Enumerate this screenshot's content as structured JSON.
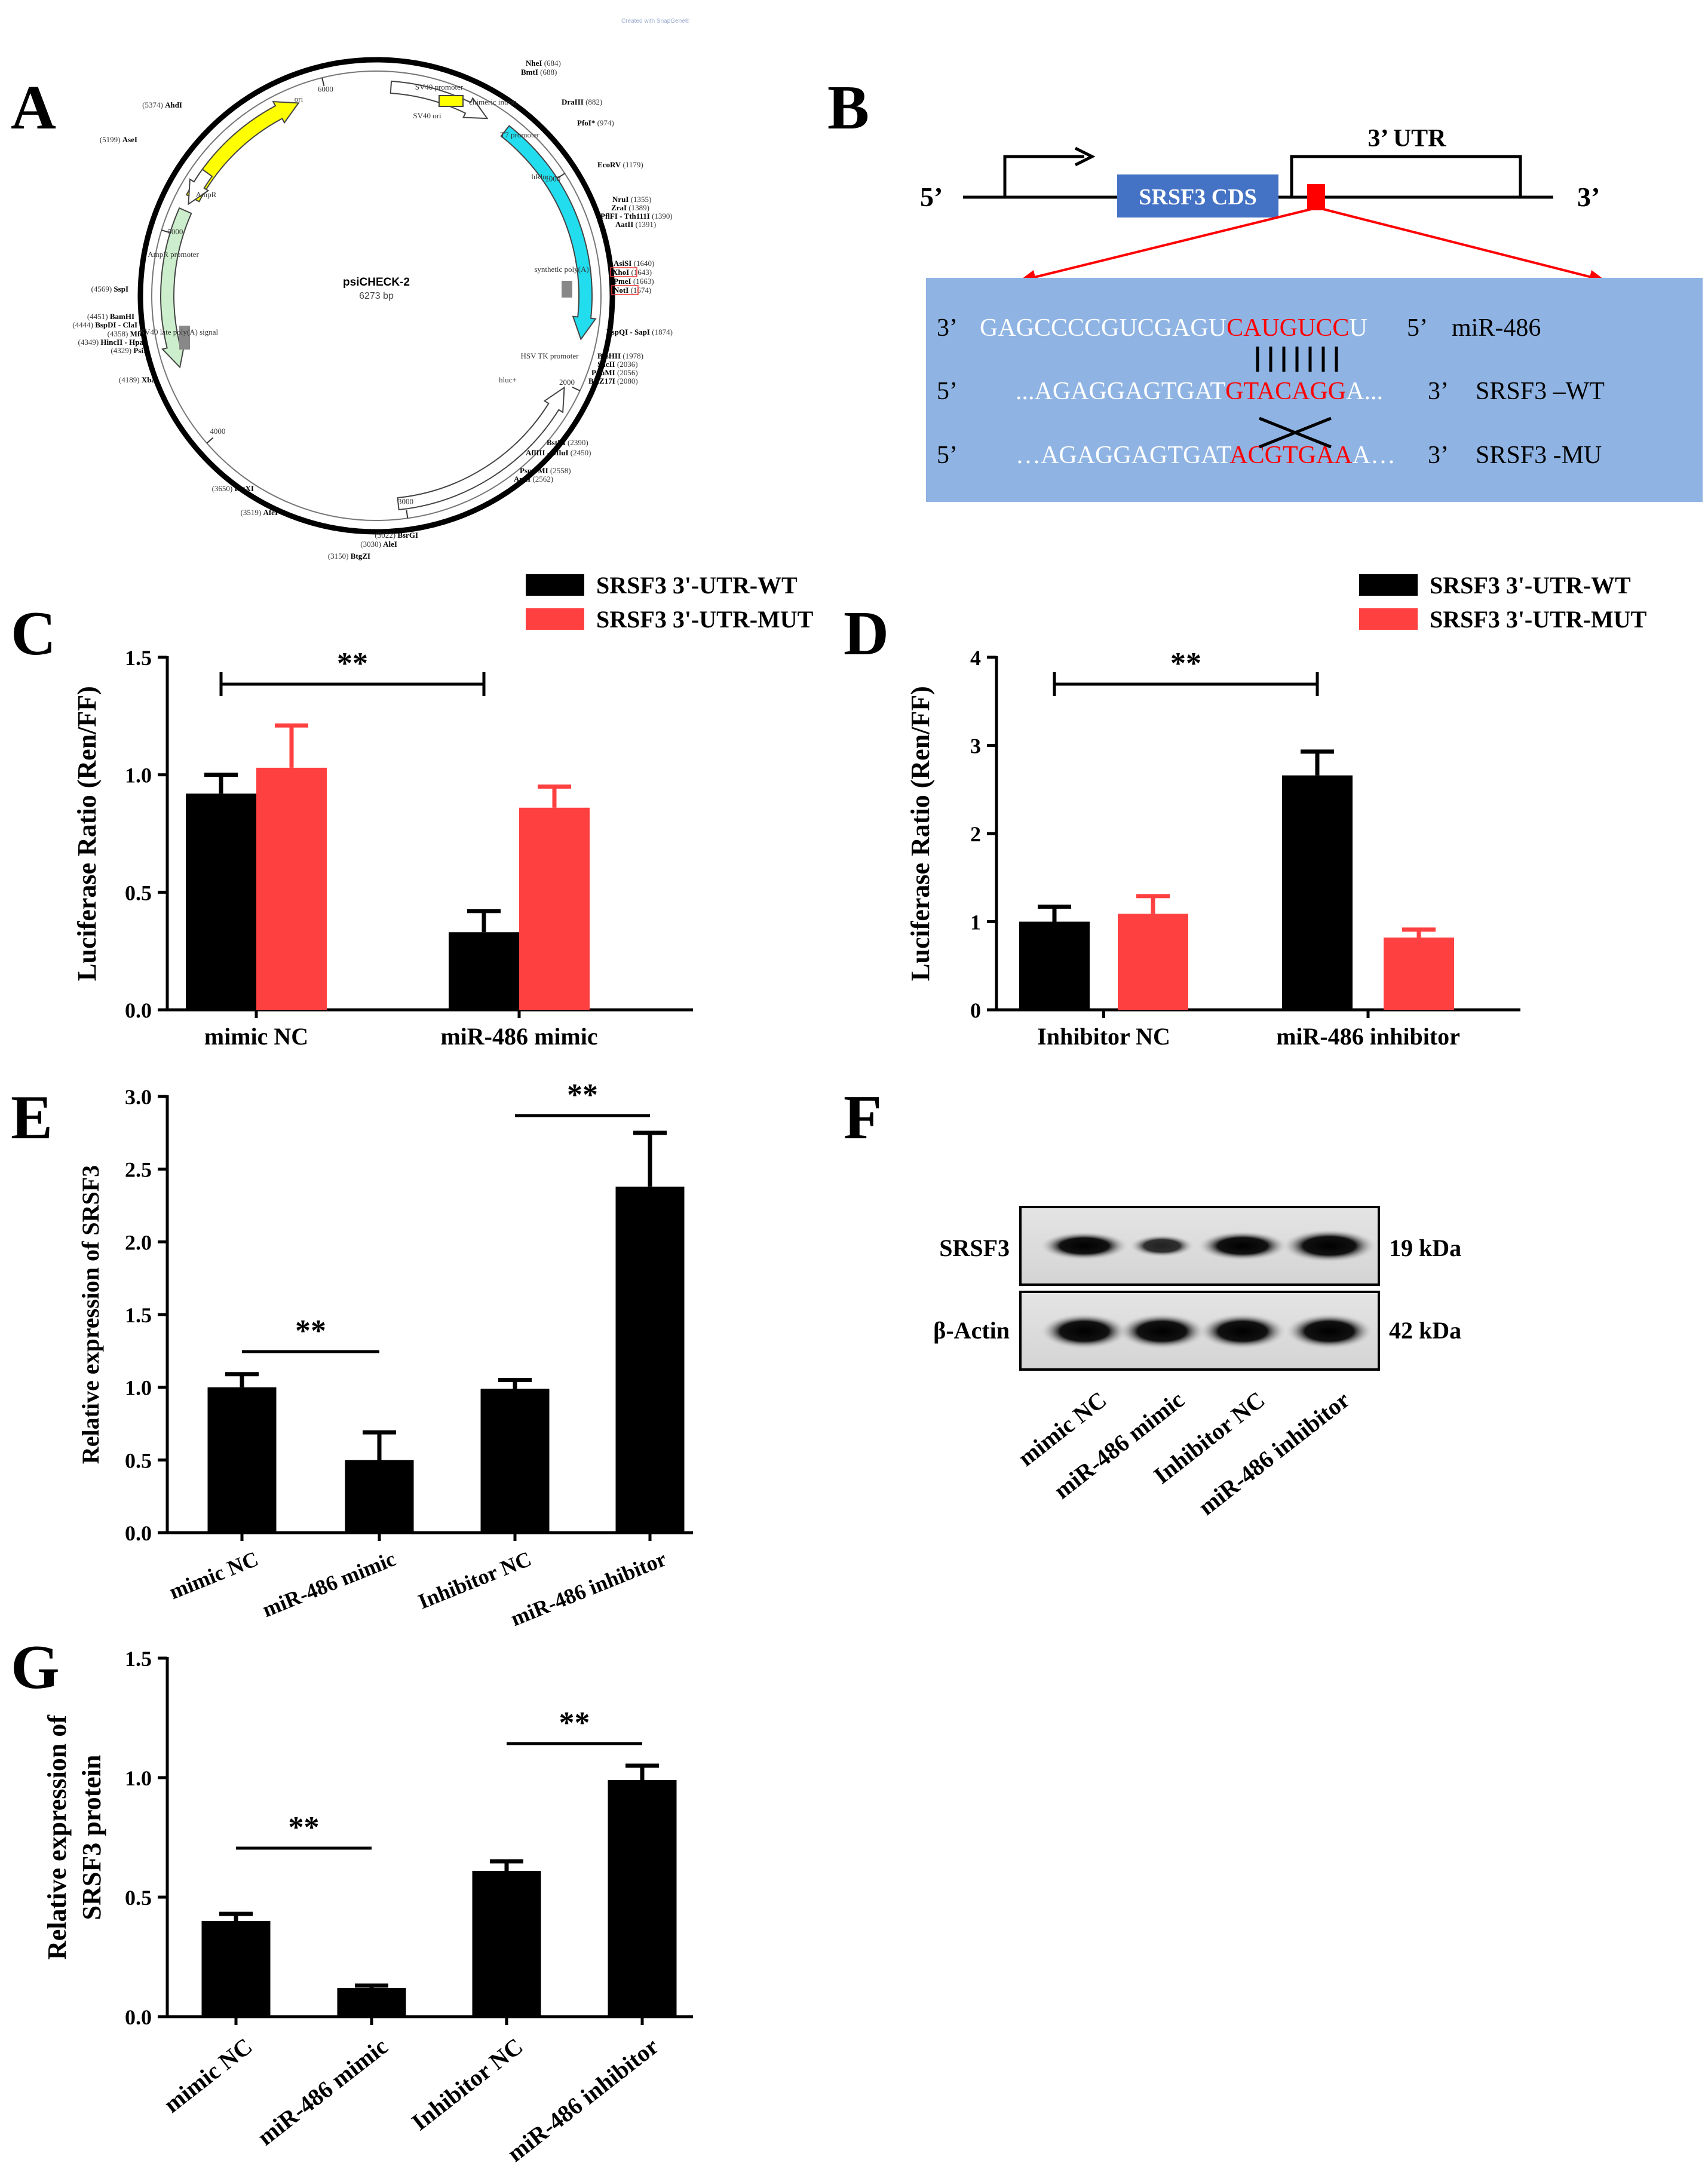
{
  "colors": {
    "wt": "#000000",
    "mut": "#FF4040",
    "blueBox": "#8FB4E3",
    "cds": "#4472C4",
    "red": "#FF0000",
    "cyan": "#22DDEE",
    "yellow": "#FFFF00",
    "lightgreen": "#CCEECC"
  },
  "panel_labels": [
    "A",
    "B",
    "C",
    "D",
    "E",
    "F",
    "G"
  ],
  "panelA": {
    "title": "psiCHECK-2",
    "size": "6273 bp",
    "features": [
      "ori",
      "SV40 promoter",
      "chimeric intron",
      "T7 promoter",
      "SV40 ori",
      "hRluc",
      "synthetic poly(A)",
      "HSV TK promoter",
      "hluc+",
      "SV40 late poly(A) signal",
      "AmpR promoter",
      "AmpR"
    ],
    "ticks": [
      "6000",
      "1000",
      "2000",
      "3000",
      "4000",
      "5000"
    ],
    "sites": [
      {
        "name": "NheI",
        "pos": "(684)"
      },
      {
        "name": "BmtI",
        "pos": "(688)"
      },
      {
        "name": "DraIII",
        "pos": "(882)"
      },
      {
        "name": "PfoI*",
        "pos": "(974)"
      },
      {
        "name": "EcoRV",
        "pos": "(1179)"
      },
      {
        "name": "NruI",
        "pos": "(1355)"
      },
      {
        "name": "ZraI",
        "pos": "(1389)"
      },
      {
        "name": "PflFI - Tth111I",
        "pos": "(1390)"
      },
      {
        "name": "AatII",
        "pos": "(1391)"
      },
      {
        "name": "AsiSI",
        "pos": "(1640)"
      },
      {
        "name": "XhoI",
        "pos": "(1643)"
      },
      {
        "name": "PmeI",
        "pos": "(1663)"
      },
      {
        "name": "NotI",
        "pos": "(1674)"
      },
      {
        "name": "BspQI - SapI",
        "pos": "(1874)"
      },
      {
        "name": "BssHII",
        "pos": "(1978)"
      },
      {
        "name": "SacII",
        "pos": "(2036)"
      },
      {
        "name": "PpuMI",
        "pos": "(2056)"
      },
      {
        "name": "BstZ17I",
        "pos": "(2080)"
      },
      {
        "name": "BstBI",
        "pos": "(2390)"
      },
      {
        "name": "AflIII - MluI",
        "pos": "(2450)"
      },
      {
        "name": "PspOMI",
        "pos": "(2558)"
      },
      {
        "name": "ApaI",
        "pos": "(2562)"
      },
      {
        "name": "BsrGI",
        "pos": "(3022)"
      },
      {
        "name": "AleI",
        "pos": "(3030)"
      },
      {
        "name": "BtgZI",
        "pos": "(3150)"
      },
      {
        "name": "AfeI",
        "pos": "(3519)"
      },
      {
        "name": "BstXI",
        "pos": "(3650)"
      },
      {
        "name": "XbaI",
        "pos": "(4189)"
      },
      {
        "name": "PsiI",
        "pos": "(4329)"
      },
      {
        "name": "HincII - HpaI",
        "pos": "(4349)"
      },
      {
        "name": "MfeI",
        "pos": "(4358)"
      },
      {
        "name": "BspDI - ClaI",
        "pos": "(4444)"
      },
      {
        "name": "BamHI",
        "pos": "(4451)"
      },
      {
        "name": "SspI",
        "pos": "(4569)"
      },
      {
        "name": "AseI",
        "pos": "(5199)"
      },
      {
        "name": "AhdI",
        "pos": "(5374)"
      }
    ],
    "watermark": "Created with SnapGene®"
  },
  "panelB": {
    "five": "5’",
    "three": "3’",
    "utr": "3’ UTR",
    "cds": "SRSF3 CDS",
    "rows": [
      {
        "left": "3’",
        "seq_pre": "GAGCCCCGUCGAGU",
        "seq_red": "CAUGUCC",
        "seq_post": "U",
        "right": "5’",
        "name": "miR-486"
      },
      {
        "left": "5’",
        "seq_pre": "...AGAGGAGTGAT",
        "seq_red": "GTACAGG",
        "seq_post": "A...",
        "right": "3’",
        "name": "SRSF3 –WT"
      },
      {
        "left": "5’",
        "seq_pre": "…AGAGGAGTGAT",
        "seq_red": "ACGTGAA",
        "seq_post": "A…",
        "right": "3’",
        "name": "SRSF3 -MU"
      }
    ]
  },
  "panelF": {
    "rows": [
      "SRSF3",
      "β-Actin"
    ],
    "sizes": [
      "19 kDa",
      "42 kDa"
    ],
    "lanes": [
      "mimic NC",
      "miR-486 mimic",
      "Inhibitor NC",
      "miR-486 inhibitor"
    ]
  },
  "chart_data": [
    {
      "id": "C",
      "type": "bar",
      "categories": [
        "mimic NC",
        "miR-486 mimic"
      ],
      "series": [
        {
          "name": "SRSF3 3'-UTR-WT",
          "values": [
            0.92,
            0.33
          ],
          "errors": [
            0.08,
            0.09
          ]
        },
        {
          "name": "SRSF3 3'-UTR-MUT",
          "values": [
            1.03,
            0.86
          ],
          "errors": [
            0.18,
            0.09
          ]
        }
      ],
      "ylabel": "Luciferase Ratio (Ren/FF)",
      "ylim": [
        0,
        1.5
      ],
      "yticks": [
        "0.0",
        "0.5",
        "1.0",
        "1.5"
      ],
      "significance": [
        {
          "label": "**",
          "from": 0,
          "to": 1
        }
      ]
    },
    {
      "id": "D",
      "type": "bar",
      "categories": [
        "Inhibitor NC",
        "miR-486 inhibitor"
      ],
      "series": [
        {
          "name": "SRSF3 3'-UTR-WT",
          "values": [
            1.0,
            2.66
          ],
          "errors": [
            0.17,
            0.27
          ]
        },
        {
          "name": "SRSF3 3'-UTR-MUT",
          "values": [
            1.09,
            0.82
          ],
          "errors": [
            0.2,
            0.09
          ]
        }
      ],
      "ylabel": "Luciferase Ratio (Ren/FF)",
      "ylim": [
        0,
        4
      ],
      "yticks": [
        "0",
        "1",
        "2",
        "3",
        "4"
      ],
      "significance": [
        {
          "label": "**",
          "from": 0,
          "to": 1
        }
      ]
    },
    {
      "id": "E",
      "type": "bar",
      "categories": [
        "mimic NC",
        "miR-486 mimic",
        "Inhibitor NC",
        "miR-486 inhibitor"
      ],
      "series": [
        {
          "name": "SRSF3",
          "values": [
            1.0,
            0.5,
            0.99,
            2.38
          ],
          "errors": [
            0.09,
            0.19,
            0.06,
            0.37
          ]
        }
      ],
      "ylabel": "Relative expression of SRSF3",
      "ylim": [
        0,
        3.0
      ],
      "yticks": [
        "0.0",
        "0.5",
        "1.0",
        "1.5",
        "2.0",
        "2.5",
        "3.0"
      ],
      "significance": [
        {
          "label": "**",
          "from": 0,
          "to": 1
        },
        {
          "label": "**",
          "from": 2,
          "to": 3
        }
      ]
    },
    {
      "id": "G",
      "type": "bar",
      "categories": [
        "mimic NC",
        "miR-486 mimic",
        "Inhibitor NC",
        "miR-486 inhibitor"
      ],
      "series": [
        {
          "name": "SRSF3 protein",
          "values": [
            0.4,
            0.12,
            0.61,
            0.99
          ],
          "errors": [
            0.03,
            0.01,
            0.04,
            0.06
          ]
        }
      ],
      "ylabel_lines": [
        "Relative expression of",
        "SRSF3 protein"
      ],
      "ylim": [
        0,
        1.5
      ],
      "yticks": [
        "0.0",
        "0.5",
        "1.0",
        "1.5"
      ],
      "significance": [
        {
          "label": "**",
          "from": 0,
          "to": 1
        },
        {
          "label": "**",
          "from": 2,
          "to": 3
        }
      ]
    }
  ]
}
